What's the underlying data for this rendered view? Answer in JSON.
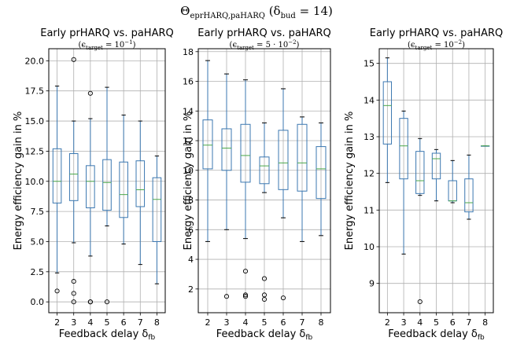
{
  "figure": {
    "suptitle_main": "Θ",
    "suptitle_sub": "eprHARQ,paHARQ",
    "suptitle_rest": " (δ",
    "suptitle_rest_sub": "bud",
    "suptitle_end": " = 14)"
  },
  "chart_data": [
    {
      "type": "boxplot",
      "title": "Early prHARQ vs. paHARQ",
      "subtitle_pre": "(ϵ",
      "subtitle_sub": "target",
      "subtitle_mid": " = 10",
      "subtitle_sup": "−1",
      "subtitle_post": ")",
      "xlabel": "Feedback delay δ",
      "xlabel_sub": "fb",
      "ylabel": "Energy efficiency gain in %",
      "categories": [
        "2",
        "3",
        "4",
        "5",
        "6",
        "7",
        "8"
      ],
      "ylim": [
        -0.9,
        21.0
      ],
      "yticks": [
        0.0,
        2.5,
        5.0,
        7.5,
        10.0,
        12.5,
        15.0,
        17.5,
        20.0
      ],
      "ytick_labels": [
        "0.0",
        "2.5",
        "5.0",
        "7.5",
        "10.0",
        "12.5",
        "15.0",
        "17.5",
        "20.0"
      ],
      "grid": true,
      "boxes": [
        {
          "whislo": 2.4,
          "q1": 8.2,
          "med": 10.0,
          "q3": 12.7,
          "whishi": 17.9,
          "fliers": [
            0.9
          ]
        },
        {
          "whislo": 4.9,
          "q1": 8.4,
          "med": 10.6,
          "q3": 12.3,
          "whishi": 15.0,
          "fliers": [
            20.1,
            1.7,
            0.7,
            0.0
          ]
        },
        {
          "whislo": 3.8,
          "q1": 7.8,
          "med": 10.0,
          "q3": 11.3,
          "whishi": 15.2,
          "fliers": [
            17.3,
            0.0,
            0.0
          ]
        },
        {
          "whislo": 6.3,
          "q1": 7.6,
          "med": 9.9,
          "q3": 11.8,
          "whishi": 17.8,
          "fliers": [
            0.0
          ]
        },
        {
          "whislo": 4.8,
          "q1": 7.0,
          "med": 8.9,
          "q3": 11.6,
          "whishi": 15.5,
          "fliers": []
        },
        {
          "whislo": 3.1,
          "q1": 7.9,
          "med": 9.3,
          "q3": 11.7,
          "whishi": 15.0,
          "fliers": []
        },
        {
          "whislo": 1.5,
          "q1": 5.0,
          "med": 8.5,
          "q3": 10.3,
          "whishi": 12.1,
          "fliers": []
        }
      ]
    },
    {
      "type": "boxplot",
      "title": "Early prHARQ vs. paHARQ",
      "subtitle_pre": "(ϵ",
      "subtitle_sub": "target",
      "subtitle_mid": " = 5 · 10",
      "subtitle_sup": "−2",
      "subtitle_post": ")",
      "xlabel": "Feedback delay δ",
      "xlabel_sub": "fb",
      "ylabel": "Energy efficiency gain in %",
      "categories": [
        "2",
        "3",
        "4",
        "5",
        "6",
        "7",
        "8"
      ],
      "ylim": [
        0.4,
        18.2
      ],
      "yticks": [
        2,
        4,
        6,
        8,
        10,
        12,
        14,
        16,
        18
      ],
      "ytick_labels": [
        "2",
        "4",
        "6",
        "8",
        "10",
        "12",
        "14",
        "16",
        "18"
      ],
      "grid": true,
      "boxes": [
        {
          "whislo": 5.2,
          "q1": 10.1,
          "med": 11.7,
          "q3": 13.4,
          "whishi": 17.4,
          "fliers": []
        },
        {
          "whislo": 6.0,
          "q1": 10.0,
          "med": 11.5,
          "q3": 12.8,
          "whishi": 16.5,
          "fliers": [
            1.5
          ]
        },
        {
          "whislo": 5.4,
          "q1": 9.2,
          "med": 11.0,
          "q3": 13.1,
          "whishi": 16.1,
          "fliers": [
            3.2,
            1.6,
            1.5
          ]
        },
        {
          "whislo": 8.5,
          "q1": 9.1,
          "med": 10.3,
          "q3": 10.9,
          "whishi": 13.2,
          "fliers": [
            2.7,
            1.6,
            1.3
          ]
        },
        {
          "whislo": 6.8,
          "q1": 8.7,
          "med": 10.5,
          "q3": 12.7,
          "whishi": 15.5,
          "fliers": [
            1.4
          ]
        },
        {
          "whislo": 5.2,
          "q1": 8.6,
          "med": 10.5,
          "q3": 13.1,
          "whishi": 13.6,
          "fliers": []
        },
        {
          "whislo": 5.6,
          "q1": 8.1,
          "med": 10.1,
          "q3": 11.6,
          "whishi": 13.2,
          "fliers": []
        }
      ]
    },
    {
      "type": "boxplot",
      "title": "Early prHARQ vs. paHARQ",
      "subtitle_pre": "(ϵ",
      "subtitle_sub": "target",
      "subtitle_mid": " = 10",
      "subtitle_sup": "−2",
      "subtitle_post": ")",
      "xlabel": "Feedback delay δ",
      "xlabel_sub": "fb",
      "ylabel": "Energy efficiency gain in %",
      "categories": [
        "2",
        "3",
        "4",
        "5",
        "6",
        "7",
        "8"
      ],
      "ylim": [
        8.2,
        15.4
      ],
      "yticks": [
        9,
        10,
        11,
        12,
        13,
        14,
        15
      ],
      "ytick_labels": [
        "9",
        "10",
        "11",
        "12",
        "13",
        "14",
        "15"
      ],
      "grid": true,
      "boxes": [
        {
          "whislo": 11.75,
          "q1": 12.8,
          "med": 13.85,
          "q3": 14.5,
          "whishi": 15.15,
          "fliers": []
        },
        {
          "whislo": 9.8,
          "q1": 11.85,
          "med": 12.75,
          "q3": 13.5,
          "whishi": 13.7,
          "fliers": []
        },
        {
          "whislo": 11.4,
          "q1": 11.45,
          "med": 11.8,
          "q3": 12.6,
          "whishi": 12.95,
          "fliers": [
            8.5
          ]
        },
        {
          "whislo": 11.25,
          "q1": 11.85,
          "med": 12.4,
          "q3": 12.55,
          "whishi": 12.65,
          "fliers": []
        },
        {
          "whislo": 11.2,
          "q1": 11.25,
          "med": 11.25,
          "q3": 11.8,
          "whishi": 12.35,
          "fliers": []
        },
        {
          "whislo": 10.75,
          "q1": 10.95,
          "med": 11.2,
          "q3": 11.85,
          "whishi": 12.5,
          "fliers": []
        },
        {
          "whislo": 12.75,
          "q1": 12.75,
          "med": 12.75,
          "q3": 12.75,
          "whishi": 12.75,
          "fliers": []
        }
      ]
    }
  ],
  "colors": {
    "box": "#3b77b0",
    "median": "#4aa84a",
    "grid": "#b0b0b0",
    "flier": "#000000"
  }
}
